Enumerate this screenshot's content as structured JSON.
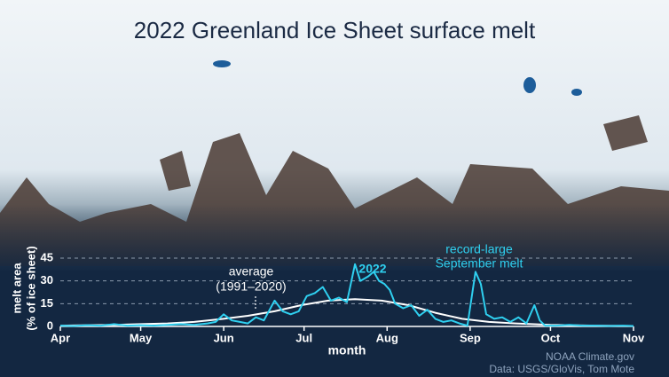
{
  "chart_data": {
    "type": "line",
    "title": "2022 Greenland Ice Sheet surface melt",
    "xlabel": "month",
    "ylabel": [
      "melt area",
      "(% of ice sheet)"
    ],
    "xlim": [
      0,
      214
    ],
    "xticks": [
      {
        "value": 0,
        "label": "Apr"
      },
      {
        "value": 30,
        "label": "May"
      },
      {
        "value": 61,
        "label": "Jun"
      },
      {
        "value": 91,
        "label": "Jul"
      },
      {
        "value": 122,
        "label": "Aug"
      },
      {
        "value": 153,
        "label": "Sep"
      },
      {
        "value": 183,
        "label": "Oct"
      },
      {
        "value": 214,
        "label": "Nov"
      }
    ],
    "ylim": [
      0,
      45
    ],
    "yticks": [
      0,
      15,
      30,
      45
    ],
    "grid": true,
    "series": [
      {
        "name": "2022",
        "color": "#2fd0f0",
        "x": [
          0,
          5,
          10,
          15,
          20,
          25,
          30,
          35,
          40,
          45,
          50,
          55,
          58,
          61,
          64,
          67,
          70,
          73,
          76,
          80,
          83,
          86,
          89,
          92,
          95,
          98,
          101,
          104,
          107,
          110,
          112,
          115,
          117,
          119,
          121,
          123,
          125,
          128,
          131,
          134,
          137,
          140,
          143,
          146,
          149,
          152,
          155,
          157,
          159,
          162,
          165,
          168,
          171,
          174,
          177,
          179,
          181,
          185,
          190,
          195,
          200,
          205,
          210,
          214
        ],
        "values": [
          0.5,
          0.3,
          0.8,
          0.5,
          1.5,
          0.5,
          0.8,
          0.5,
          1,
          1.5,
          1,
          2,
          3,
          8,
          4,
          3,
          2,
          6,
          4,
          17,
          10,
          8,
          10,
          20,
          22,
          26,
          17,
          19,
          16,
          41,
          30,
          33,
          36,
          30,
          28,
          24,
          15,
          12,
          14,
          7,
          11,
          5,
          3,
          4,
          2,
          0.5,
          36,
          28,
          8,
          5,
          6,
          3,
          6,
          2,
          14,
          4,
          0.5,
          0.5,
          1,
          0.5,
          0.5,
          0.3,
          0.5,
          0.3
        ]
      },
      {
        "name": "average",
        "color": "#ffffff",
        "x": [
          0,
          10,
          20,
          30,
          40,
          50,
          61,
          70,
          80,
          90,
          100,
          110,
          120,
          130,
          140,
          150,
          160,
          170,
          183,
          200,
          214
        ],
        "values": [
          0.5,
          0.8,
          1,
          1.5,
          2,
          3,
          5,
          7,
          10,
          14,
          17,
          18,
          17,
          14,
          9,
          5,
          3,
          2,
          1,
          0.5,
          0.3
        ]
      }
    ],
    "annotations": [
      "(1991–2020)",
      "record-large",
      "September melt"
    ],
    "credits": [
      "NOAA Climate.gov",
      "Data: USGS/GloVis, Tom Mote"
    ]
  }
}
